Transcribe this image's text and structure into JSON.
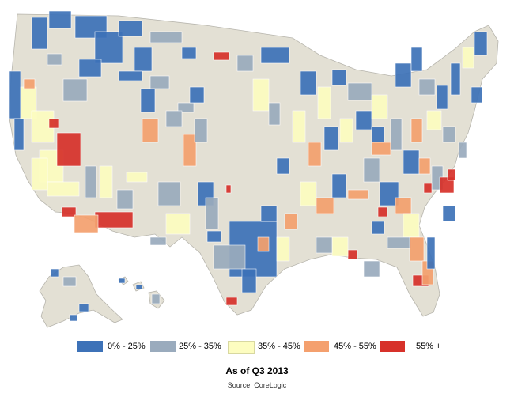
{
  "map": {
    "title": "As of Q3 2013",
    "source": "Source: CoreLogic",
    "legend": [
      {
        "label": "0% - 25%",
        "color": "#3d72b8"
      },
      {
        "label": "25% - 35%",
        "color": "#9aabbd"
      },
      {
        "label": "35% - 45%",
        "color": "#fdfdc0"
      },
      {
        "label": "45% - 55%",
        "color": "#f4a06e"
      },
      {
        "label": "55% +",
        "color": "#d7312a"
      }
    ],
    "base_color": "#e3e0d4",
    "border_color": "#b7b5ad"
  }
}
